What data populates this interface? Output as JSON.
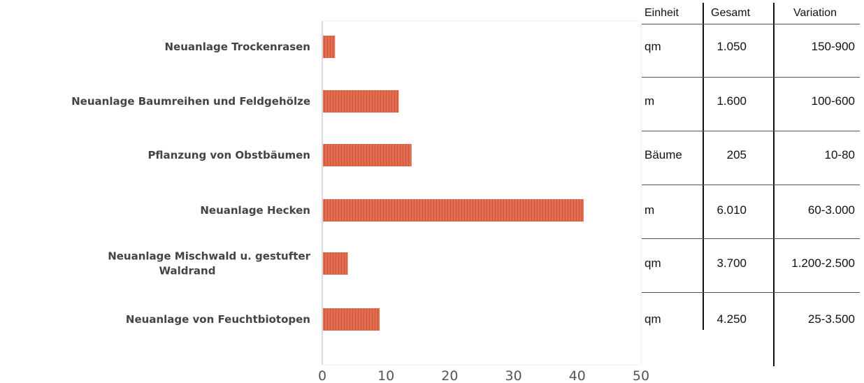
{
  "chart_data": {
    "type": "bar",
    "orientation": "horizontal",
    "categories": [
      "Neuanlage Trockenrasen",
      "Neuanlage Baumreihen und Feldgehölze",
      "Pflanzung von Obstbäumen",
      "Neuanlage Hecken",
      "Neuanlage Mischwald u. gestufter Waldrand",
      "Neuanlage von Feuchtbiotopen"
    ],
    "category_lines": [
      [
        "Neuanlage Trockenrasen"
      ],
      [
        "Neuanlage Baumreihen und Feldgehölze"
      ],
      [
        "Pflanzung von Obstbäumen"
      ],
      [
        "Neuanlage Hecken"
      ],
      [
        "Neuanlage Mischwald u. gestufter",
        "Waldrand"
      ],
      [
        "Neuanlage von Feuchtbiotopen"
      ]
    ],
    "values": [
      2,
      12,
      14,
      41,
      4,
      9
    ],
    "xlim": [
      0,
      50
    ],
    "xticks": [
      0,
      10,
      20,
      30,
      40,
      50
    ],
    "xtick_labels": [
      "0",
      "10",
      "20",
      "30",
      "40",
      "50"
    ],
    "grid": false,
    "legend": "none",
    "bar_color": "#e06a4c"
  },
  "table": {
    "headers": [
      "Einheit",
      "Gesamt",
      "Variation"
    ],
    "rows": [
      [
        "qm",
        "1.050",
        "150-900"
      ],
      [
        "m",
        "1.600",
        "100-600"
      ],
      [
        "Bäume",
        "205",
        "10-80"
      ],
      [
        "m",
        "6.010",
        "60-3.000"
      ],
      [
        "qm",
        "3.700",
        "1.200-2.500"
      ],
      [
        "qm",
        "4.250",
        "25-3.500"
      ]
    ]
  }
}
